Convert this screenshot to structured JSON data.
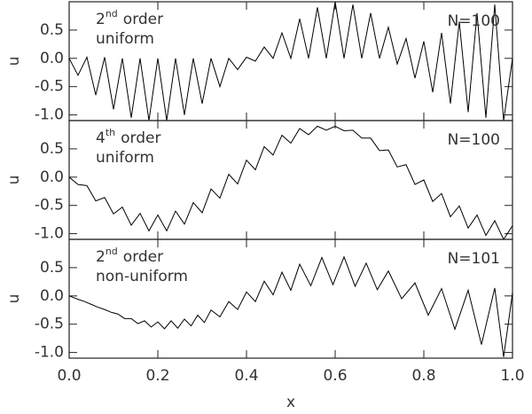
{
  "chart_data": [
    {
      "type": "line",
      "ylabel": "u",
      "xlim": [
        0,
        1
      ],
      "ylim": [
        -1.1,
        1.0
      ],
      "yticks": [
        {
          "value": -1,
          "label": "-1.0"
        },
        -0.5,
        {
          "value": 0,
          "label": "0.0"
        },
        0.5
      ],
      "annotation": {
        "order_number": "2",
        "order_suffix": "nd",
        "order_word": "order",
        "scheme": "uniform"
      },
      "n_label": "N=100",
      "color": "#000000",
      "x": [
        0,
        0.02,
        0.04,
        0.06,
        0.08,
        0.1,
        0.12,
        0.14,
        0.16,
        0.18,
        0.2,
        0.22,
        0.24,
        0.26,
        0.28,
        0.3,
        0.32,
        0.34,
        0.36,
        0.38,
        0.4,
        0.42,
        0.44,
        0.46,
        0.48,
        0.5,
        0.52,
        0.54,
        0.56,
        0.58,
        0.6,
        0.62,
        0.64,
        0.66,
        0.68,
        0.7,
        0.72,
        0.74,
        0.76,
        0.78,
        0.8,
        0.82,
        0.84,
        0.86,
        0.88,
        0.9,
        0.92,
        0.94,
        0.96,
        0.98,
        1.0
      ],
      "values": [
        0,
        -0.3,
        0.02,
        -0.65,
        0.02,
        -0.9,
        0,
        -1.05,
        0,
        -1.1,
        0,
        -1.1,
        0,
        -1.0,
        0,
        -0.8,
        0,
        -0.5,
        0,
        -0.2,
        0.02,
        -0.05,
        0.2,
        0,
        0.45,
        0,
        0.7,
        0,
        0.9,
        0,
        1.0,
        0,
        0.95,
        0,
        0.8,
        0,
        0.55,
        -0.1,
        0.35,
        -0.35,
        0.3,
        -0.6,
        0.45,
        -0.8,
        0.65,
        -0.95,
        0.8,
        -1.05,
        0.95,
        -1.1,
        0
      ]
    },
    {
      "type": "line",
      "ylabel": "u",
      "xlim": [
        0,
        1
      ],
      "ylim": [
        -1.1,
        1.0
      ],
      "yticks": [
        {
          "value": -1,
          "label": "-1.0"
        },
        -0.5,
        {
          "value": 0,
          "label": "0.0"
        },
        0.5
      ],
      "annotation": {
        "order_number": "4",
        "order_suffix": "th",
        "order_word": "order",
        "scheme": "uniform"
      },
      "n_label": "N=100",
      "color": "#000000",
      "x": [
        0,
        0.02,
        0.04,
        0.06,
        0.08,
        0.1,
        0.12,
        0.14,
        0.16,
        0.18,
        0.2,
        0.22,
        0.24,
        0.26,
        0.28,
        0.3,
        0.32,
        0.34,
        0.36,
        0.38,
        0.4,
        0.42,
        0.44,
        0.46,
        0.48,
        0.5,
        0.52,
        0.54,
        0.56,
        0.58,
        0.6,
        0.62,
        0.64,
        0.66,
        0.68,
        0.7,
        0.72,
        0.74,
        0.76,
        0.78,
        0.8,
        0.82,
        0.84,
        0.86,
        0.88,
        0.9,
        0.92,
        0.94,
        0.96,
        0.98,
        1.0
      ],
      "values": [
        0,
        -0.13,
        -0.15,
        -0.42,
        -0.36,
        -0.65,
        -0.53,
        -0.85,
        -0.64,
        -0.95,
        -0.67,
        -0.95,
        -0.6,
        -0.83,
        -0.45,
        -0.63,
        -0.21,
        -0.37,
        0.05,
        -0.12,
        0.3,
        0.13,
        0.54,
        0.39,
        0.74,
        0.6,
        0.86,
        0.75,
        0.9,
        0.83,
        0.9,
        0.82,
        0.83,
        0.69,
        0.69,
        0.47,
        0.48,
        0.18,
        0.22,
        -0.13,
        -0.05,
        -0.43,
        -0.29,
        -0.7,
        -0.51,
        -0.9,
        -0.67,
        -1.03,
        -0.77,
        -1.1,
        -0.86
      ]
    },
    {
      "type": "line",
      "ylabel": "u",
      "xlabel": "x",
      "xlim": [
        0,
        1
      ],
      "ylim": [
        -1.1,
        1.0
      ],
      "xticks": [
        {
          "value": 0,
          "label": "0.0"
        },
        0.2,
        0.4,
        0.6,
        0.8,
        {
          "value": 1,
          "label": "1.0"
        }
      ],
      "yticks": [
        {
          "value": -1,
          "label": "-1.0"
        },
        -0.5,
        {
          "value": 0,
          "label": "0.0"
        },
        0.5
      ],
      "annotation": {
        "order_number": "2",
        "order_suffix": "nd",
        "order_word": "order",
        "scheme": "non-uniform"
      },
      "n_label": "N=101",
      "color": "#000000",
      "x": [
        0,
        0.01,
        0.02,
        0.035,
        0.05,
        0.065,
        0.08,
        0.095,
        0.11,
        0.125,
        0.14,
        0.155,
        0.17,
        0.185,
        0.2,
        0.215,
        0.23,
        0.245,
        0.26,
        0.275,
        0.29,
        0.305,
        0.32,
        0.34,
        0.36,
        0.38,
        0.4,
        0.42,
        0.44,
        0.46,
        0.48,
        0.5,
        0.52,
        0.545,
        0.57,
        0.595,
        0.62,
        0.645,
        0.67,
        0.695,
        0.72,
        0.75,
        0.78,
        0.81,
        0.84,
        0.87,
        0.9,
        0.93,
        0.96,
        0.98,
        1.0
      ],
      "values": [
        0,
        -0.03,
        -0.06,
        -0.1,
        -0.15,
        -0.2,
        -0.24,
        -0.29,
        -0.32,
        -0.4,
        -0.4,
        -0.49,
        -0.44,
        -0.55,
        -0.46,
        -0.58,
        -0.44,
        -0.57,
        -0.41,
        -0.53,
        -0.34,
        -0.47,
        -0.25,
        -0.37,
        -0.1,
        -0.24,
        0.07,
        -0.1,
        0.26,
        0.02,
        0.42,
        0.1,
        0.56,
        0.18,
        0.68,
        0.2,
        0.69,
        0.17,
        0.58,
        0.11,
        0.44,
        -0.05,
        0.23,
        -0.34,
        0.13,
        -0.59,
        0.1,
        -0.86,
        0.14,
        -1.08,
        0.05
      ]
    }
  ]
}
